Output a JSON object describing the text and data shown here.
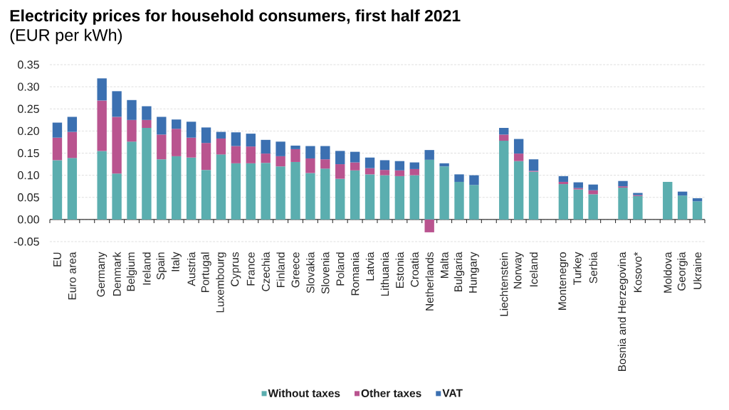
{
  "chart_data": {
    "type": "bar",
    "title": "Electricity prices for household consumers, first half 2021",
    "subtitle": "(EUR per kWh)",
    "categories": [
      "EU",
      "Euro area",
      null,
      "Germany",
      "Denmark",
      "Belgium",
      "Ireland",
      "Spain",
      "Italy",
      "Austria",
      "Portugal",
      "Luxembourg",
      "Cyprus",
      "France",
      "Czechia",
      "Finland",
      "Greece",
      "Slovakia",
      "Slovenia",
      "Poland",
      "Romania",
      "Latvia",
      "Lithuania",
      "Estonia",
      "Croatia",
      "Netherlands",
      "Malta",
      "Bulgaria",
      "Hungary",
      null,
      "Liechtenstein",
      "Norway",
      "Iceland",
      null,
      "Montenegro",
      "Turkey",
      "Serbia",
      null,
      "Bosnia and Herzegovina",
      "Kosovo*",
      null,
      "Moldova",
      "Georgia",
      "Ukraine"
    ],
    "series": [
      {
        "name": "Without taxes",
        "color": "#5baeaf",
        "values": [
          0.134,
          0.139,
          null,
          0.155,
          0.104,
          0.176,
          0.207,
          0.136,
          0.143,
          0.14,
          0.112,
          0.147,
          0.127,
          0.127,
          0.128,
          0.12,
          0.13,
          0.105,
          0.115,
          0.092,
          0.111,
          0.102,
          0.1,
          0.098,
          0.1,
          0.135,
          0.12,
          0.085,
          0.078,
          null,
          0.178,
          0.132,
          0.108,
          null,
          0.08,
          0.068,
          0.057,
          null,
          0.072,
          0.053,
          null,
          0.085,
          0.054,
          0.041
        ]
      },
      {
        "name": "Other taxes",
        "color": "#b9548f",
        "values": [
          0.051,
          0.059,
          null,
          0.114,
          0.128,
          0.049,
          0.018,
          0.056,
          0.062,
          0.045,
          0.061,
          0.036,
          0.039,
          0.038,
          0.021,
          0.023,
          0.029,
          0.033,
          0.021,
          0.033,
          0.018,
          0.014,
          0.012,
          0.013,
          0.014,
          -0.029,
          null,
          null,
          null,
          null,
          0.014,
          0.017,
          0.002,
          null,
          0.005,
          0.003,
          0.009,
          null,
          0.003,
          0.002,
          null,
          null,
          null,
          null
        ]
      },
      {
        "name": "VAT",
        "color": "#3b70b1",
        "values": [
          0.034,
          0.034,
          null,
          0.05,
          0.058,
          0.045,
          0.031,
          0.04,
          0.021,
          0.036,
          0.035,
          0.015,
          0.031,
          0.029,
          0.031,
          0.033,
          0.008,
          0.028,
          0.03,
          0.03,
          0.024,
          0.024,
          0.022,
          0.021,
          0.015,
          0.022,
          0.007,
          0.017,
          0.022,
          null,
          0.015,
          0.033,
          0.026,
          null,
          0.013,
          0.013,
          0.013,
          null,
          0.012,
          0.005,
          null,
          null,
          0.009,
          0.007
        ]
      }
    ],
    "stacked": true,
    "ylim": [
      -0.05,
      0.35
    ],
    "yticks": [
      {
        "value": -0.05,
        "label": "-0.05"
      },
      {
        "value": 0,
        "label": "0.00"
      },
      {
        "value": 0.05,
        "label": "0.05"
      },
      {
        "value": 0.1,
        "label": "0.10"
      },
      {
        "value": 0.15,
        "label": "0.15"
      },
      {
        "value": 0.2,
        "label": "0.20"
      },
      {
        "value": 0.25,
        "label": "0.25"
      },
      {
        "value": 0.3,
        "label": "0.30"
      },
      {
        "value": 0.35,
        "label": "0.35"
      }
    ],
    "grid": "y",
    "legend": "bottom"
  }
}
